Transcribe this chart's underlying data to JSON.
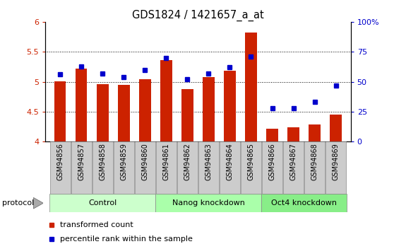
{
  "title": "GDS1824 / 1421657_a_at",
  "samples": [
    "GSM94856",
    "GSM94857",
    "GSM94858",
    "GSM94859",
    "GSM94860",
    "GSM94861",
    "GSM94862",
    "GSM94863",
    "GSM94864",
    "GSM94865",
    "GSM94866",
    "GSM94867",
    "GSM94868",
    "GSM94869"
  ],
  "bar_values": [
    5.01,
    5.22,
    4.96,
    4.95,
    5.04,
    5.36,
    4.88,
    5.08,
    5.18,
    5.82,
    4.22,
    4.24,
    4.28,
    4.45
  ],
  "percentile_values": [
    56,
    63,
    57,
    54,
    60,
    70,
    52,
    57,
    62,
    71,
    28,
    28,
    33,
    47
  ],
  "groups": [
    {
      "label": "Control",
      "start": 0,
      "end": 5,
      "color": "#ccffcc"
    },
    {
      "label": "Nanog knockdown",
      "start": 5,
      "end": 10,
      "color": "#aaffaa"
    },
    {
      "label": "Oct4 knockdown",
      "start": 10,
      "end": 14,
      "color": "#88ee88"
    }
  ],
  "bar_color": "#cc2200",
  "dot_color": "#0000cc",
  "ylim_left": [
    4.0,
    6.0
  ],
  "ylim_right": [
    0,
    100
  ],
  "yticks_left": [
    4.0,
    4.5,
    5.0,
    5.5,
    6.0
  ],
  "yticks_right": [
    0,
    25,
    50,
    75,
    100
  ],
  "ytick_labels_right": [
    "0",
    "25",
    "50",
    "75",
    "100%"
  ],
  "grid_vals": [
    4.5,
    5.0,
    5.5
  ],
  "legend_items": [
    {
      "label": "transformed count",
      "color": "#cc2200"
    },
    {
      "label": "percentile rank within the sample",
      "color": "#0000cc"
    }
  ],
  "protocol_label": "protocol",
  "tick_bg_color": "#cccccc",
  "tick_border_color": "#888888",
  "fig_bg": "#ffffff"
}
